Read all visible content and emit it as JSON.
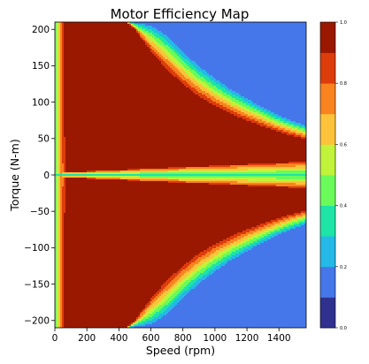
{
  "chart_data": {
    "type": "heatmap",
    "title": "Motor Efficiency Map",
    "xlabel": "Speed (rpm)",
    "ylabel": "Torque (N-m)",
    "xlim": [
      0,
      1570
    ],
    "ylim": [
      -210,
      210
    ],
    "x_ticks": [
      "0",
      "200",
      "400",
      "600",
      "800",
      "1000",
      "1200",
      "1400"
    ],
    "y_ticks": [
      "200",
      "150",
      "100",
      "50",
      "0",
      "−50",
      "−100",
      "−150",
      "−200"
    ],
    "x_tick_values": [
      0,
      200,
      400,
      600,
      800,
      1000,
      1200,
      1400
    ],
    "y_tick_values": [
      200,
      150,
      100,
      50,
      0,
      -50,
      -100,
      -150,
      -200
    ],
    "colorbar": {
      "range": [
        0,
        1
      ],
      "ticks": [
        "0.0",
        "0.2",
        "0.4",
        "0.6",
        "0.8",
        "1.0"
      ],
      "tick_values": [
        0,
        0.2,
        0.4,
        0.6,
        0.8,
        1.0
      ],
      "levels": [
        0,
        0.1,
        0.2,
        0.3,
        0.4,
        0.5,
        0.6,
        0.7,
        0.8,
        0.9,
        1.0
      ],
      "colors": [
        "#30318f",
        "#4677ea",
        "#24b9e6",
        "#1ee4a6",
        "#6afb5a",
        "#c0f33a",
        "#fcc33a",
        "#f9831f",
        "#dd3d0b",
        "#9b1800"
      ]
    },
    "region_boundaries": {
      "speed": [
        0,
        100,
        200,
        300,
        400,
        450,
        500,
        600,
        700,
        800,
        900,
        1000,
        1100,
        1200,
        1300,
        1400,
        1500,
        1570
      ],
      "torque_efficiency_0.9": [
        210,
        210,
        210,
        210,
        210,
        210,
        200,
        170,
        145,
        125,
        108,
        95,
        84,
        75,
        67,
        59,
        53,
        49
      ],
      "torque_efficiency_0.1": [
        210,
        210,
        210,
        210,
        210,
        210,
        210,
        210,
        198,
        175,
        155,
        138,
        122,
        109,
        96,
        85,
        76,
        70
      ]
    },
    "low_torque_band": {
      "torque_half_width": 3,
      "speed_ramp": [
        0,
        1570
      ],
      "widen_to": 18
    },
    "low_speed_band": {
      "speed_max": 80
    }
  }
}
